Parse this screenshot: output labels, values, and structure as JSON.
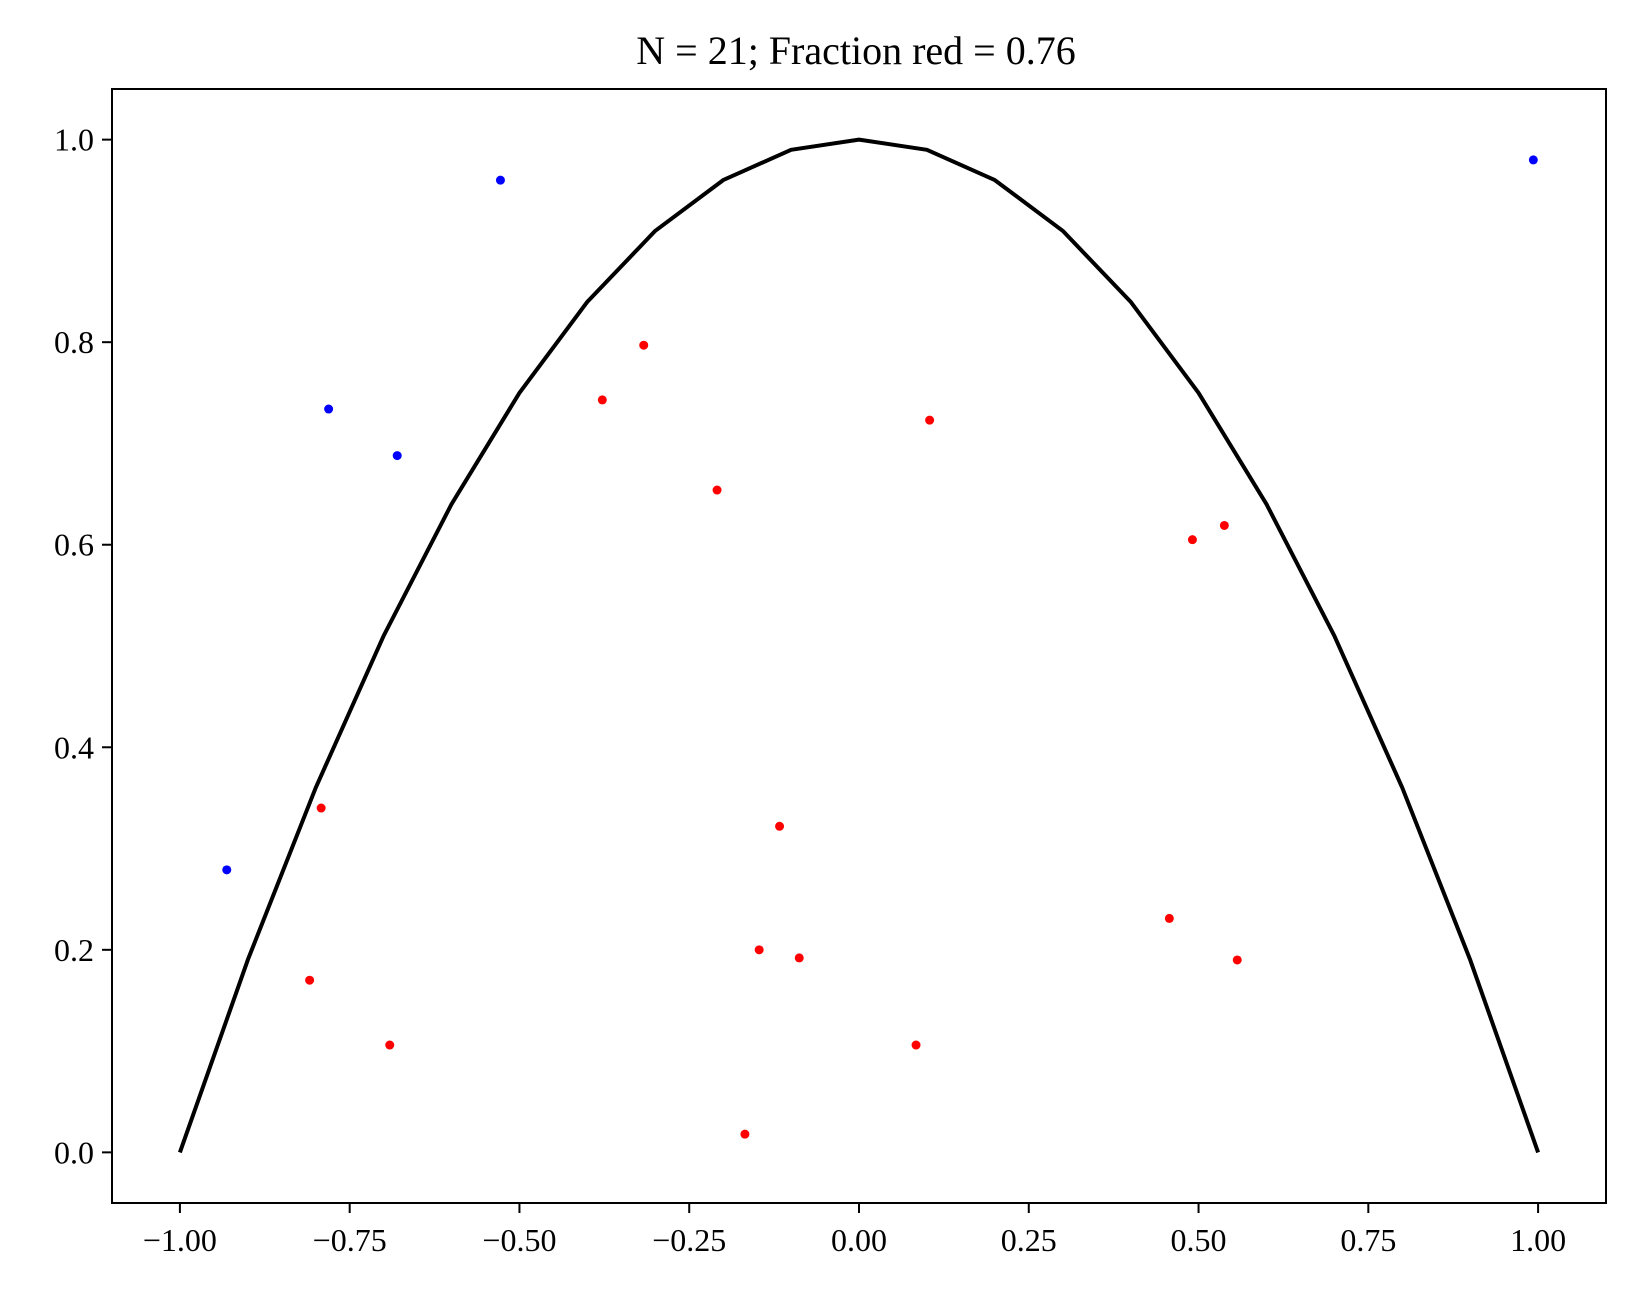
{
  "chart_data": {
    "type": "scatter",
    "title": "N = 21; Fraction red = 0.76",
    "xlabel": "",
    "ylabel": "",
    "xlim": [
      -1.1,
      1.1
    ],
    "ylim": [
      -0.05,
      1.05
    ],
    "xticks": [
      -1.0,
      -0.75,
      -0.5,
      -0.25,
      0.0,
      0.25,
      0.5,
      0.75,
      1.0
    ],
    "xtick_labels": [
      "−1.00",
      "−0.75",
      "−0.50",
      "−0.25",
      "0.00",
      "0.25",
      "0.50",
      "0.75",
      "1.00"
    ],
    "yticks": [
      0.0,
      0.2,
      0.4,
      0.6,
      0.8,
      1.0
    ],
    "ytick_labels": [
      "0.0",
      "0.2",
      "0.4",
      "0.6",
      "0.8",
      "1.0"
    ],
    "grid": false,
    "curve": {
      "color": "#000000",
      "x": [
        -1.0,
        -0.9,
        -0.8,
        -0.7,
        -0.6,
        -0.5,
        -0.4,
        -0.3,
        -0.2,
        -0.1,
        0.0,
        0.1,
        0.2,
        0.3,
        0.4,
        0.5,
        0.6,
        0.7,
        0.8,
        0.9,
        1.0
      ],
      "y": [
        0.0,
        0.19,
        0.36,
        0.51,
        0.64,
        0.75,
        0.84,
        0.91,
        0.96,
        0.99,
        1.0,
        0.99,
        0.96,
        0.91,
        0.84,
        0.75,
        0.64,
        0.51,
        0.36,
        0.19,
        0.0
      ]
    },
    "series": [
      {
        "color": "#ff0000",
        "points": [
          {
            "x": -0.317,
            "y": 0.797
          },
          {
            "x": -0.378,
            "y": 0.743
          },
          {
            "x": 0.104,
            "y": 0.723
          },
          {
            "x": -0.209,
            "y": 0.654
          },
          {
            "x": 0.538,
            "y": 0.619
          },
          {
            "x": 0.491,
            "y": 0.605
          },
          {
            "x": -0.792,
            "y": 0.34
          },
          {
            "x": -0.117,
            "y": 0.322
          },
          {
            "x": 0.457,
            "y": 0.231
          },
          {
            "x": -0.147,
            "y": 0.2
          },
          {
            "x": -0.088,
            "y": 0.192
          },
          {
            "x": 0.557,
            "y": 0.19
          },
          {
            "x": -0.809,
            "y": 0.17
          },
          {
            "x": -0.691,
            "y": 0.106
          },
          {
            "x": 0.084,
            "y": 0.106
          },
          {
            "x": -0.168,
            "y": 0.018
          }
        ]
      },
      {
        "color": "#0000ff",
        "points": [
          {
            "x": 0.993,
            "y": 0.98
          },
          {
            "x": -0.528,
            "y": 0.96
          },
          {
            "x": -0.781,
            "y": 0.734
          },
          {
            "x": -0.68,
            "y": 0.688
          },
          {
            "x": -0.931,
            "y": 0.279
          }
        ]
      }
    ]
  }
}
